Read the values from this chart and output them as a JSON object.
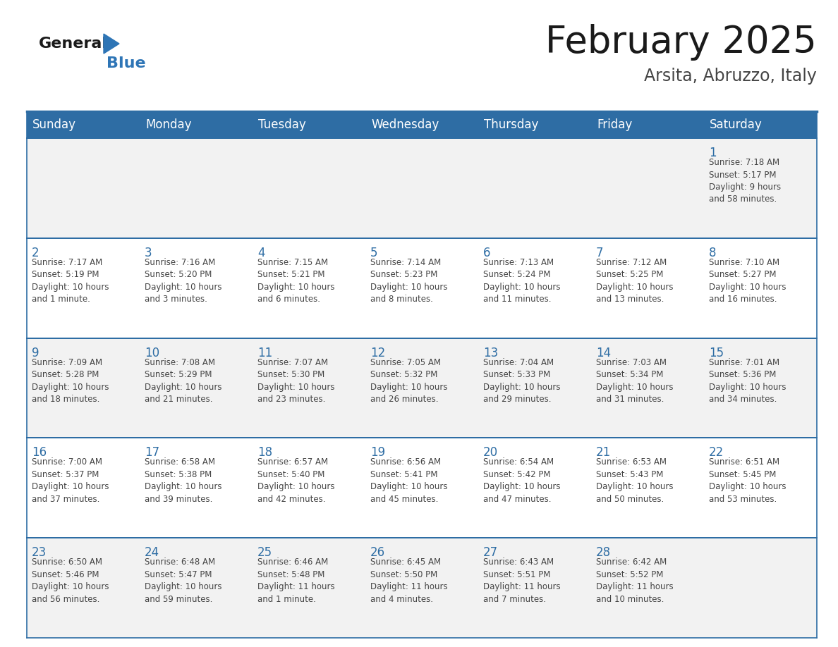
{
  "title": "February 2025",
  "subtitle": "Arsita, Abruzzo, Italy",
  "header_bg": "#2E6DA4",
  "header_text_color": "#FFFFFF",
  "cell_bg_odd": "#F2F2F2",
  "cell_bg_even": "#FFFFFF",
  "day_headers": [
    "Sunday",
    "Monday",
    "Tuesday",
    "Wednesday",
    "Thursday",
    "Friday",
    "Saturday"
  ],
  "title_color": "#1a1a1a",
  "subtitle_color": "#444444",
  "day_num_color": "#2E6DA4",
  "cell_text_color": "#444444",
  "grid_color": "#2E6DA4",
  "logo_general_color": "#1a1a1a",
  "logo_blue_color": "#2E75B6",
  "logo_triangle_color": "#2E75B6",
  "weeks": [
    [
      {
        "day": null,
        "info": ""
      },
      {
        "day": null,
        "info": ""
      },
      {
        "day": null,
        "info": ""
      },
      {
        "day": null,
        "info": ""
      },
      {
        "day": null,
        "info": ""
      },
      {
        "day": null,
        "info": ""
      },
      {
        "day": 1,
        "info": "Sunrise: 7:18 AM\nSunset: 5:17 PM\nDaylight: 9 hours\nand 58 minutes."
      }
    ],
    [
      {
        "day": 2,
        "info": "Sunrise: 7:17 AM\nSunset: 5:19 PM\nDaylight: 10 hours\nand 1 minute."
      },
      {
        "day": 3,
        "info": "Sunrise: 7:16 AM\nSunset: 5:20 PM\nDaylight: 10 hours\nand 3 minutes."
      },
      {
        "day": 4,
        "info": "Sunrise: 7:15 AM\nSunset: 5:21 PM\nDaylight: 10 hours\nand 6 minutes."
      },
      {
        "day": 5,
        "info": "Sunrise: 7:14 AM\nSunset: 5:23 PM\nDaylight: 10 hours\nand 8 minutes."
      },
      {
        "day": 6,
        "info": "Sunrise: 7:13 AM\nSunset: 5:24 PM\nDaylight: 10 hours\nand 11 minutes."
      },
      {
        "day": 7,
        "info": "Sunrise: 7:12 AM\nSunset: 5:25 PM\nDaylight: 10 hours\nand 13 minutes."
      },
      {
        "day": 8,
        "info": "Sunrise: 7:10 AM\nSunset: 5:27 PM\nDaylight: 10 hours\nand 16 minutes."
      }
    ],
    [
      {
        "day": 9,
        "info": "Sunrise: 7:09 AM\nSunset: 5:28 PM\nDaylight: 10 hours\nand 18 minutes."
      },
      {
        "day": 10,
        "info": "Sunrise: 7:08 AM\nSunset: 5:29 PM\nDaylight: 10 hours\nand 21 minutes."
      },
      {
        "day": 11,
        "info": "Sunrise: 7:07 AM\nSunset: 5:30 PM\nDaylight: 10 hours\nand 23 minutes."
      },
      {
        "day": 12,
        "info": "Sunrise: 7:05 AM\nSunset: 5:32 PM\nDaylight: 10 hours\nand 26 minutes."
      },
      {
        "day": 13,
        "info": "Sunrise: 7:04 AM\nSunset: 5:33 PM\nDaylight: 10 hours\nand 29 minutes."
      },
      {
        "day": 14,
        "info": "Sunrise: 7:03 AM\nSunset: 5:34 PM\nDaylight: 10 hours\nand 31 minutes."
      },
      {
        "day": 15,
        "info": "Sunrise: 7:01 AM\nSunset: 5:36 PM\nDaylight: 10 hours\nand 34 minutes."
      }
    ],
    [
      {
        "day": 16,
        "info": "Sunrise: 7:00 AM\nSunset: 5:37 PM\nDaylight: 10 hours\nand 37 minutes."
      },
      {
        "day": 17,
        "info": "Sunrise: 6:58 AM\nSunset: 5:38 PM\nDaylight: 10 hours\nand 39 minutes."
      },
      {
        "day": 18,
        "info": "Sunrise: 6:57 AM\nSunset: 5:40 PM\nDaylight: 10 hours\nand 42 minutes."
      },
      {
        "day": 19,
        "info": "Sunrise: 6:56 AM\nSunset: 5:41 PM\nDaylight: 10 hours\nand 45 minutes."
      },
      {
        "day": 20,
        "info": "Sunrise: 6:54 AM\nSunset: 5:42 PM\nDaylight: 10 hours\nand 47 minutes."
      },
      {
        "day": 21,
        "info": "Sunrise: 6:53 AM\nSunset: 5:43 PM\nDaylight: 10 hours\nand 50 minutes."
      },
      {
        "day": 22,
        "info": "Sunrise: 6:51 AM\nSunset: 5:45 PM\nDaylight: 10 hours\nand 53 minutes."
      }
    ],
    [
      {
        "day": 23,
        "info": "Sunrise: 6:50 AM\nSunset: 5:46 PM\nDaylight: 10 hours\nand 56 minutes."
      },
      {
        "day": 24,
        "info": "Sunrise: 6:48 AM\nSunset: 5:47 PM\nDaylight: 10 hours\nand 59 minutes."
      },
      {
        "day": 25,
        "info": "Sunrise: 6:46 AM\nSunset: 5:48 PM\nDaylight: 11 hours\nand 1 minute."
      },
      {
        "day": 26,
        "info": "Sunrise: 6:45 AM\nSunset: 5:50 PM\nDaylight: 11 hours\nand 4 minutes."
      },
      {
        "day": 27,
        "info": "Sunrise: 6:43 AM\nSunset: 5:51 PM\nDaylight: 11 hours\nand 7 minutes."
      },
      {
        "day": 28,
        "info": "Sunrise: 6:42 AM\nSunset: 5:52 PM\nDaylight: 11 hours\nand 10 minutes."
      },
      {
        "day": null,
        "info": ""
      }
    ]
  ]
}
